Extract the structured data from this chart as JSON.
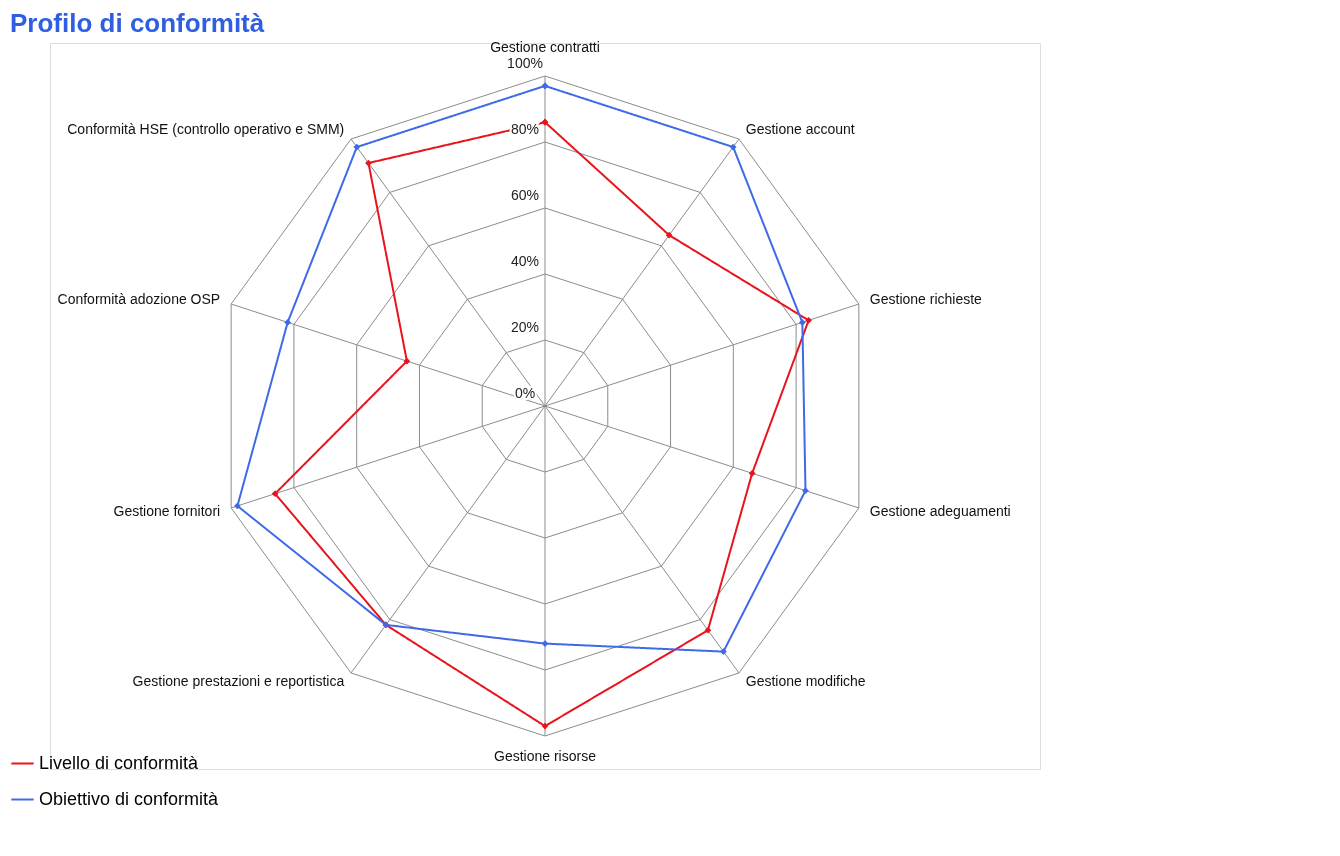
{
  "chart_data": {
    "type": "radar",
    "title": "Profilo di conformità",
    "categories": [
      "Gestione contratti",
      "Gestione account",
      "Gestione richieste",
      "Gestione adeguamenti",
      "Gestione modifiche",
      "Gestione risorse",
      "Gestione prestazioni e reportistica",
      "Gestione fornitori",
      "Conformità adozione OSP",
      "Conformità HSE (controllo operativo e SMM)"
    ],
    "series": [
      {
        "name": "Livello di conformità",
        "color": "#e8141c",
        "values": [
          86,
          64,
          84,
          66,
          84,
          97,
          82,
          86,
          44,
          91
        ]
      },
      {
        "name": "Obiettivo di conformità",
        "color": "#3e6ae8",
        "values": [
          97,
          97,
          82,
          83,
          92,
          72,
          82,
          98,
          82,
          97
        ]
      }
    ],
    "ylim": [
      0,
      100
    ],
    "yticks": [
      {
        "value": 0,
        "label": "0%"
      },
      {
        "value": 20,
        "label": "20%"
      },
      {
        "value": 40,
        "label": "40%"
      },
      {
        "value": 60,
        "label": "60%"
      },
      {
        "value": 80,
        "label": "80%"
      },
      {
        "value": 100,
        "label": "100%"
      }
    ],
    "grid": true,
    "legend": "bottom left",
    "marker": "diamond",
    "line_style": "solid"
  }
}
